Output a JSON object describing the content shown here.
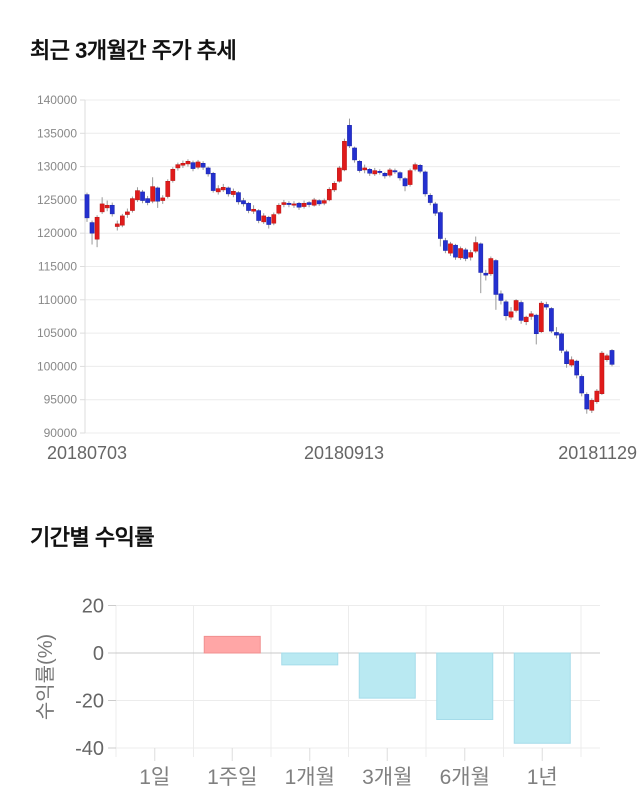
{
  "page": {
    "background": "#ffffff"
  },
  "chart_data": [
    {
      "id": "price",
      "type": "candlestick",
      "title": "최근 3개월간 주가 추세",
      "ylim": [
        90000,
        140000
      ],
      "yticks": [
        140000,
        135000,
        130000,
        125000,
        120000,
        115000,
        110000,
        105000,
        100000,
        95000,
        90000
      ],
      "xtick_labels": [
        "20180703",
        "20180913",
        "20181129"
      ],
      "grid": true,
      "legend": "none",
      "up_color": "#e01b1b",
      "down_color": "#2430cf",
      "wick_color": "#999999",
      "grid_color": "#ececec",
      "axis_color": "#dddddd",
      "tick_label_color": "#888888",
      "xtick_label_color": "#666666",
      "candles_ohlc": [
        [
          125800,
          126100,
          121700,
          122300
        ],
        [
          121600,
          121900,
          118300,
          120000
        ],
        [
          119100,
          122700,
          117900,
          122400
        ],
        [
          123200,
          125400,
          122900,
          124400
        ],
        [
          123800,
          124900,
          123300,
          124200
        ],
        [
          124200,
          124600,
          122500,
          122900
        ],
        [
          121000,
          121900,
          120400,
          121400
        ],
        [
          121200,
          122900,
          120900,
          122600
        ],
        [
          122800,
          123700,
          122300,
          123200
        ],
        [
          123400,
          125500,
          123100,
          125200
        ],
        [
          125000,
          126900,
          124700,
          126400
        ],
        [
          126200,
          126500,
          124500,
          124900
        ],
        [
          125200,
          125600,
          124200,
          124600
        ],
        [
          124800,
          128400,
          124500,
          127000
        ],
        [
          126800,
          127000,
          123800,
          124800
        ],
        [
          124900,
          125700,
          124400,
          125300
        ],
        [
          125500,
          128100,
          125200,
          127800
        ],
        [
          127900,
          129900,
          127600,
          129600
        ],
        [
          129800,
          130600,
          129400,
          130300
        ],
        [
          130200,
          130900,
          129800,
          130500
        ],
        [
          130400,
          131100,
          130000,
          130800
        ],
        [
          130600,
          130900,
          129300,
          129700
        ],
        [
          129900,
          131000,
          129600,
          130700
        ],
        [
          130500,
          130800,
          129500,
          129900
        ],
        [
          129800,
          130000,
          128500,
          128900
        ],
        [
          129000,
          129200,
          126100,
          126400
        ],
        [
          126200,
          127200,
          125800,
          126700
        ],
        [
          126500,
          127400,
          126200,
          126900
        ],
        [
          126800,
          127000,
          125500,
          125900
        ],
        [
          125800,
          126700,
          125400,
          126300
        ],
        [
          126100,
          126300,
          124300,
          124700
        ],
        [
          124900,
          125300,
          124000,
          124400
        ],
        [
          124500,
          124700,
          123000,
          123400
        ],
        [
          123300,
          124200,
          122900,
          123600
        ],
        [
          123400,
          123600,
          121500,
          121900
        ],
        [
          121700,
          123000,
          121400,
          122600
        ],
        [
          122400,
          122600,
          120700,
          121300
        ],
        [
          121500,
          123100,
          121200,
          122800
        ],
        [
          123000,
          124500,
          122800,
          124200
        ],
        [
          124300,
          125000,
          123900,
          124600
        ],
        [
          124500,
          124800,
          123900,
          124300
        ],
        [
          124200,
          124800,
          123800,
          124400
        ],
        [
          124500,
          124700,
          123500,
          123900
        ],
        [
          124000,
          124900,
          123700,
          124500
        ],
        [
          124600,
          124800,
          123900,
          124300
        ],
        [
          124200,
          125300,
          124000,
          125000
        ],
        [
          124900,
          125100,
          124100,
          124400
        ],
        [
          124500,
          125200,
          124200,
          124900
        ],
        [
          125000,
          126900,
          124800,
          126600
        ],
        [
          126500,
          127800,
          126200,
          127500
        ],
        [
          127800,
          130100,
          127600,
          129800
        ],
        [
          129500,
          134200,
          129300,
          133800
        ],
        [
          136200,
          137200,
          132800,
          133100
        ],
        [
          132800,
          133000,
          130600,
          131000
        ],
        [
          130800,
          131000,
          129100,
          129400
        ],
        [
          129500,
          130300,
          129000,
          129800
        ],
        [
          129600,
          129800,
          128600,
          129000
        ],
        [
          128900,
          129800,
          128600,
          129400
        ],
        [
          129300,
          129600,
          128800,
          129100
        ],
        [
          129000,
          129200,
          128200,
          128600
        ],
        [
          128700,
          129800,
          128400,
          129500
        ],
        [
          129400,
          129700,
          128900,
          129200
        ],
        [
          129100,
          129300,
          127900,
          128300
        ],
        [
          128200,
          128400,
          126300,
          127100
        ],
        [
          127300,
          129700,
          127000,
          129400
        ],
        [
          129600,
          130600,
          129300,
          130300
        ],
        [
          130200,
          130400,
          129000,
          129300
        ],
        [
          129200,
          129400,
          125500,
          125900
        ],
        [
          125700,
          126000,
          124200,
          124600
        ],
        [
          124400,
          124700,
          122600,
          123000
        ],
        [
          123100,
          123300,
          118000,
          119200
        ],
        [
          118900,
          119300,
          117000,
          117400
        ],
        [
          117000,
          118700,
          116600,
          118400
        ],
        [
          118200,
          118400,
          116000,
          116400
        ],
        [
          116300,
          118000,
          116000,
          117700
        ],
        [
          117500,
          117800,
          115800,
          116200
        ],
        [
          116400,
          117500,
          115900,
          117100
        ],
        [
          117300,
          119500,
          117000,
          118600
        ],
        [
          118400,
          118600,
          111000,
          114100
        ],
        [
          114000,
          114500,
          112900,
          113700
        ],
        [
          113900,
          116500,
          113600,
          116200
        ],
        [
          115900,
          116100,
          108500,
          110800
        ],
        [
          110900,
          111400,
          109300,
          109900
        ],
        [
          109700,
          110000,
          106900,
          107600
        ],
        [
          107400,
          108900,
          107000,
          108200
        ],
        [
          108400,
          110100,
          108100,
          109900
        ],
        [
          109600,
          109900,
          106400,
          106900
        ],
        [
          106700,
          107600,
          106200,
          107400
        ],
        [
          107500,
          108300,
          107000,
          107900
        ],
        [
          107700,
          107900,
          103300,
          104900
        ],
        [
          105200,
          109800,
          105000,
          109500
        ],
        [
          109300,
          109700,
          108500,
          108900
        ],
        [
          108700,
          108900,
          105000,
          105300
        ],
        [
          105100,
          105900,
          104200,
          104700
        ],
        [
          104900,
          105100,
          102000,
          102400
        ],
        [
          102200,
          102500,
          99800,
          100400
        ],
        [
          100200,
          101500,
          99900,
          101000
        ],
        [
          100800,
          101000,
          98200,
          98700
        ],
        [
          98500,
          98800,
          95500,
          96000
        ],
        [
          95800,
          96100,
          92900,
          93600
        ],
        [
          93400,
          95200,
          93000,
          94900
        ],
        [
          94700,
          96600,
          94400,
          96300
        ],
        [
          95900,
          102300,
          95700,
          102000
        ],
        [
          101000,
          101900,
          100700,
          101600
        ],
        [
          102400,
          102600,
          100000,
          100300
        ]
      ]
    },
    {
      "id": "returns",
      "type": "bar",
      "title": "기간별 수익률",
      "ylabel": "수익률(%)",
      "categories": [
        "1일",
        "1주일",
        "1개월",
        "3개월",
        "6개월",
        "1년"
      ],
      "values": [
        0,
        7,
        -5,
        -19,
        -28,
        -38
      ],
      "yticks": [
        20,
        0,
        -20,
        -40
      ],
      "ylim": [
        -46,
        22
      ],
      "grid": true,
      "legend": "none",
      "positive_color": "#ffa6a6",
      "positive_border": "#f09090",
      "negative_color": "#b9e9f2",
      "negative_border": "#a5dcea",
      "grid_color": "#ececec",
      "zero_line_color": "#c8c8c8",
      "tick_label_color": "#666666",
      "category_label_color": "#808080",
      "ylabel_color": "#777777"
    }
  ]
}
